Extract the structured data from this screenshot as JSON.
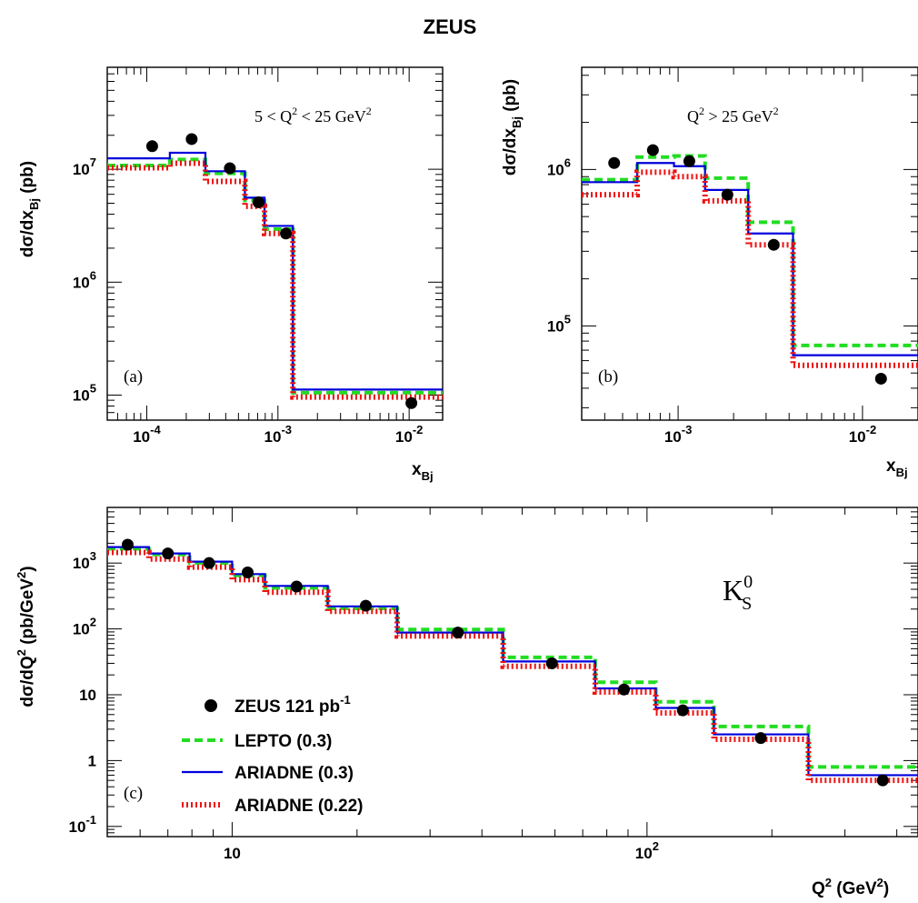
{
  "figure_title": "ZEUS",
  "colors": {
    "data": "#000000",
    "lepto": "#22dd22",
    "ariadne03": "#0000dd",
    "ariadne022": "#ee1111"
  },
  "chart_data": [
    {
      "type": "line",
      "panel_label": "(a)",
      "annotation_main": "5 < Q",
      "annotation_sup": "2",
      "annotation_rest": " < 25 GeV",
      "annotation_sup2": "2",
      "ylabel": "dσ/dx",
      "ylabel_sub": "Bj",
      "ylabel_unit": " (pb)",
      "xlabel": "x",
      "xlabel_sub": "Bj",
      "xscale": "log",
      "yscale": "log",
      "xlim": [
        5e-05,
        0.018
      ],
      "ylim": [
        60000,
        80000000
      ],
      "xticks": [
        {
          "v": 0.0001,
          "base": "10",
          "exp": "-4"
        },
        {
          "v": 0.001,
          "base": "10",
          "exp": "-3"
        },
        {
          "v": 0.01,
          "base": "10",
          "exp": "-2"
        }
      ],
      "yticks": [
        {
          "v": 100000,
          "base": "10",
          "exp": "5"
        },
        {
          "v": 1000000,
          "base": "10",
          "exp": "6"
        },
        {
          "v": 10000000,
          "base": "10",
          "exp": "7"
        }
      ],
      "bin_edges": [
        5e-05,
        0.00015,
        0.00028,
        0.00056,
        0.00079,
        0.0013,
        0.018
      ],
      "data_points": {
        "x": [
          0.00011,
          0.00022,
          0.00043,
          0.00071,
          0.00115,
          0.0104
        ],
        "y": [
          16000000,
          18500000,
          10200000,
          5100000,
          2700000,
          85000
        ]
      },
      "series": [
        {
          "name": "LEPTO (0.3)",
          "key": "lepto",
          "values": [
            10800000,
            12200000,
            9200000,
            5300000,
            2950000,
            105000
          ]
        },
        {
          "name": "ARIADNE (0.3)",
          "key": "ariadne03",
          "values": [
            12500000,
            14000000,
            9600000,
            5600000,
            3150000,
            112000
          ]
        },
        {
          "name": "ARIADNE (0.22)",
          "key": "ariadne022",
          "values": [
            10300000,
            11300000,
            7800000,
            4700000,
            2700000,
            96000
          ]
        }
      ]
    },
    {
      "type": "line",
      "panel_label": "(b)",
      "annotation_main": "Q",
      "annotation_sup": "2",
      "annotation_rest": " > 25 GeV",
      "annotation_sup2": "2",
      "ylabel": "dσ/dx",
      "ylabel_sub": "Bj",
      "ylabel_unit": " (pb)",
      "xlabel": "x",
      "xlabel_sub": "Bj",
      "xscale": "log",
      "yscale": "log",
      "xlim": [
        0.0003,
        0.02
      ],
      "ylim": [
        25000,
        4500000
      ],
      "xticks": [
        {
          "v": 0.001,
          "base": "10",
          "exp": "-3"
        },
        {
          "v": 0.01,
          "base": "10",
          "exp": "-2"
        }
      ],
      "yticks": [
        {
          "v": 100000,
          "base": "10",
          "exp": "5"
        },
        {
          "v": 1000000,
          "base": "10",
          "exp": "6"
        }
      ],
      "bin_edges": [
        0.0003,
        0.0006,
        0.00095,
        0.0014,
        0.0024,
        0.0042,
        0.02
      ],
      "data_points": {
        "x": [
          0.00045,
          0.00073,
          0.00115,
          0.00185,
          0.0033,
          0.0126
        ],
        "y": [
          1100000,
          1330000,
          1130000,
          690000,
          330000,
          46000
        ]
      },
      "series": [
        {
          "name": "LEPTO (0.3)",
          "key": "lepto",
          "values": [
            860000,
            1200000,
            1220000,
            880000,
            460000,
            75000
          ]
        },
        {
          "name": "ARIADNE (0.3)",
          "key": "ariadne03",
          "values": [
            830000,
            1100000,
            1050000,
            740000,
            390000,
            65000
          ]
        },
        {
          "name": "ARIADNE (0.22)",
          "key": "ariadne022",
          "values": [
            690000,
            960000,
            900000,
            630000,
            330000,
            56000
          ]
        }
      ]
    },
    {
      "type": "line",
      "panel_label": "(c)",
      "particle_label": "K",
      "particle_sub": "S",
      "particle_sup": "0",
      "ylabel": "dσ/dQ",
      "ylabel_sup": "2",
      "ylabel_unit": " (pb/GeV",
      "ylabel_unit_sup": "2",
      "ylabel_close": ")",
      "xlabel": "Q",
      "xlabel_sup": "2",
      "xlabel_unit": " (GeV",
      "xlabel_unit_sup": "2",
      "xlabel_close": ")",
      "xscale": "log",
      "yscale": "log",
      "xlim": [
        5,
        450
      ],
      "ylim": [
        0.07,
        7000
      ],
      "xticks": [
        {
          "v": 10,
          "base": "10",
          "exp": ""
        },
        {
          "v": 100,
          "base": "10",
          "exp": "2"
        }
      ],
      "yticks": [
        {
          "v": 0.1,
          "base": "10",
          "exp": "-1"
        },
        {
          "v": 1,
          "base": "1",
          "exp": ""
        },
        {
          "v": 10,
          "base": "10",
          "exp": ""
        },
        {
          "v": 100,
          "base": "10",
          "exp": "2"
        },
        {
          "v": 1000,
          "base": "10",
          "exp": "3"
        }
      ],
      "bin_edges": [
        5,
        6.3,
        7.9,
        10,
        12,
        17,
        25,
        45,
        75,
        105,
        145,
        245,
        450
      ],
      "data_points": {
        "x": [
          5.6,
          7.0,
          8.8,
          10.9,
          14.3,
          21,
          35,
          59,
          88,
          122,
          188,
          370
        ],
        "y": [
          1900,
          1400,
          1000,
          720,
          440,
          225,
          88,
          30,
          12,
          5.8,
          2.2,
          0.5
        ]
      },
      "series": [
        {
          "name": "LEPTO (0.3)",
          "key": "lepto",
          "values": [
            1650,
            1350,
            1000,
            650,
            420,
            205,
            98,
            37,
            15.5,
            7.8,
            3.3,
            0.8
          ]
        },
        {
          "name": "ARIADNE (0.3)",
          "key": "ariadne03",
          "values": [
            1750,
            1400,
            1050,
            680,
            450,
            220,
            88,
            32,
            12.5,
            6.3,
            2.5,
            0.6
          ]
        },
        {
          "name": "ARIADNE (0.22)",
          "key": "ariadne022",
          "values": [
            1450,
            1150,
            870,
            560,
            360,
            185,
            78,
            27,
            11,
            5.3,
            2.1,
            0.5
          ]
        }
      ],
      "legend": {
        "position": "bottom-left",
        "entries": [
          {
            "label": "ZEUS 121 pb",
            "sup": "-1",
            "key": "data"
          },
          {
            "label": "LEPTO (0.3)",
            "sup": "",
            "key": "lepto"
          },
          {
            "label": "ARIADNE (0.3)",
            "sup": "",
            "key": "ariadne03"
          },
          {
            "label": "ARIADNE (0.22)",
            "sup": "",
            "key": "ariadne022"
          }
        ]
      }
    }
  ]
}
